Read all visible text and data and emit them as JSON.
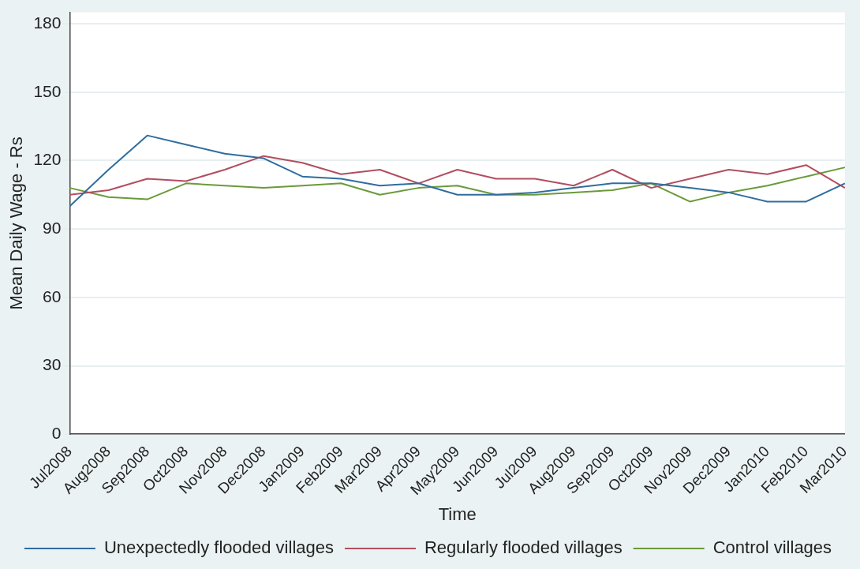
{
  "chart_data": {
    "type": "line",
    "xlabel": "Time",
    "ylabel": "Mean Daily Wage - Rs",
    "categories": [
      "Jul2008",
      "Aug2008",
      "Sep2008",
      "Oct2008",
      "Nov2008",
      "Dec2008",
      "Jan2009",
      "Feb2009",
      "Mar2009",
      "Apr2009",
      "May2009",
      "Jun2009",
      "Jul2009",
      "Aug2009",
      "Sep2009",
      "Oct2009",
      "Nov2009",
      "Dec2009",
      "Jan2010",
      "Feb2010",
      "Mar2010"
    ],
    "series": [
      {
        "name": "Unexpectedly flooded villages",
        "color": "#2f6d9e",
        "values": [
          100,
          116,
          131,
          127,
          123,
          121,
          113,
          112,
          109,
          110,
          105,
          105,
          106,
          108,
          110,
          110,
          108,
          106,
          102,
          102,
          110
        ]
      },
      {
        "name": "Regularly flooded villages",
        "color": "#b24e5e",
        "values": [
          105,
          107,
          112,
          111,
          116,
          122,
          119,
          114,
          116,
          110,
          116,
          112,
          112,
          109,
          116,
          108,
          112,
          116,
          114,
          118,
          108
        ]
      },
      {
        "name": "Control villages",
        "color": "#6a9a3a",
        "values": [
          108,
          104,
          103,
          110,
          109,
          108,
          109,
          110,
          105,
          108,
          109,
          105,
          105,
          106,
          107,
          110,
          102,
          106,
          109,
          113,
          117
        ]
      }
    ],
    "ylim": [
      0,
      185
    ],
    "yticks": [
      0,
      30,
      60,
      90,
      120,
      150,
      180
    ],
    "grid": "y",
    "legend": "bottom",
    "marker": "none",
    "line_style": "solid"
  }
}
